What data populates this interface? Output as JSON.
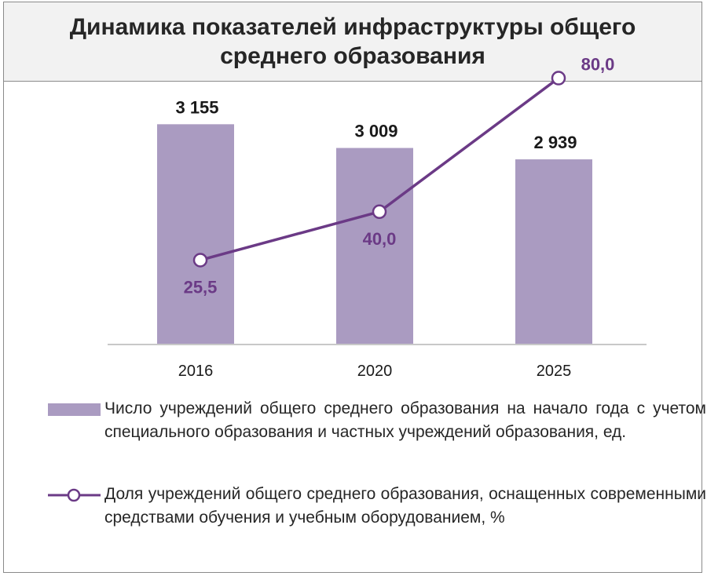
{
  "title": "Динамика показателей инфраструктуры общего среднего образования",
  "chart_data": {
    "type": "bar",
    "categories": [
      "2016",
      "2020",
      "2025"
    ],
    "series": [
      {
        "name": "Число учреждений общего среднего образования на начало года с учетом специального образования и частных учреждений образования, ед.",
        "type": "bar",
        "values": [
          3155,
          3009,
          2939
        ],
        "labels": [
          "3 155",
          "3 009",
          "2 939"
        ],
        "color": "#aa9bc1"
      },
      {
        "name": "Доля учреждений общего среднего образования, оснащенных современными средствами обучения и учебным оборудованием, %",
        "type": "line",
        "values": [
          25.5,
          40.0,
          80.0
        ],
        "labels": [
          "25,5",
          "40,0",
          "80,0"
        ],
        "color": "#6b3a86"
      }
    ],
    "bar_ylim": [
      1800,
      3200
    ],
    "line_ylim": [
      0,
      90
    ],
    "grid": false,
    "legend_position": "bottom"
  }
}
